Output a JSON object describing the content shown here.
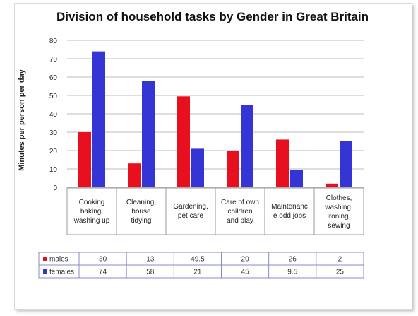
{
  "chart_data": {
    "type": "bar",
    "title": "Division of household tasks by Gender in Great Britain",
    "ylabel": "Minutes per person per day",
    "xlabel": "",
    "ylim": [
      0,
      80
    ],
    "yticks": [
      0,
      10,
      20,
      30,
      40,
      50,
      60,
      70,
      80
    ],
    "grid": true,
    "categories": [
      "Cooking baking, washing up",
      "Cleaning, house tidying",
      "Gardening, pet care",
      "Care of own children and play",
      "Maintenance odd jobs",
      "Clothes, washing, ironing, sewing"
    ],
    "category_lines": [
      [
        "Cooking",
        "baking,",
        "washing up"
      ],
      [
        "Cleaning,",
        "house",
        "tidying"
      ],
      [
        "Gardening,",
        "pet care"
      ],
      [
        "Care of own",
        "children",
        "and play"
      ],
      [
        "Maintenanc",
        "e odd jobs"
      ],
      [
        "Clothes,",
        "washing,",
        "ironing,",
        "sewing"
      ]
    ],
    "series": [
      {
        "name": "males",
        "color": "#e8101e",
        "values": [
          30,
          13,
          49.5,
          20,
          26,
          2
        ],
        "labels": [
          "30",
          "13",
          "49.5",
          "20",
          "26",
          "2"
        ]
      },
      {
        "name": "females",
        "color": "#3535d6",
        "values": [
          74,
          58,
          21,
          45,
          9.5,
          25
        ],
        "labels": [
          "74",
          "58",
          "21",
          "45",
          "9.5",
          "25"
        ]
      }
    ]
  }
}
